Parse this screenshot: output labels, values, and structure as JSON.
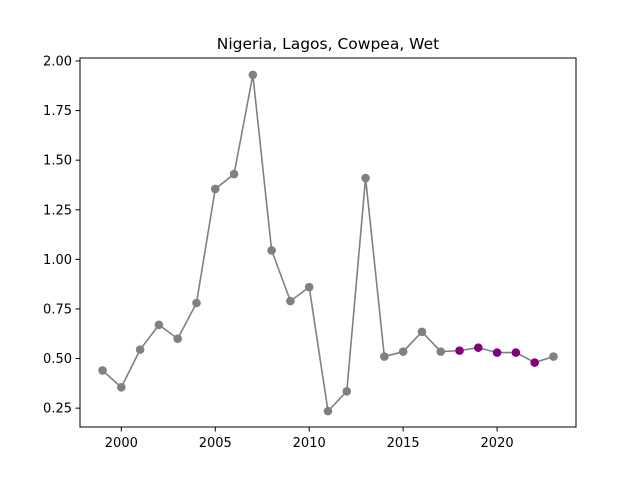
{
  "chart_data": {
    "type": "line",
    "title": "Nigeria, Lagos, Cowpea, Wet",
    "xlabel": "",
    "ylabel": "",
    "xlim": [
      1997.8,
      2024.2
    ],
    "ylim": [
      0.155,
      2.015
    ],
    "x_ticks": [
      2000,
      2005,
      2010,
      2015,
      2020
    ],
    "y_ticks": [
      0.25,
      0.5,
      0.75,
      1.0,
      1.25,
      1.5,
      1.75,
      2.0
    ],
    "grid": false,
    "legend": "none",
    "line_color": "#808080",
    "series": [
      {
        "x": [
          1999,
          2000,
          2001,
          2002,
          2003,
          2004,
          2005,
          2006,
          2007,
          2008,
          2009,
          2010,
          2011,
          2012,
          2013,
          2014,
          2015,
          2016,
          2017,
          2018,
          2019,
          2020,
          2021,
          2022,
          2023
        ],
        "values": [
          0.44,
          0.355,
          0.545,
          0.67,
          0.6,
          0.78,
          1.355,
          1.43,
          1.93,
          1.045,
          0.79,
          0.86,
          0.235,
          0.335,
          1.41,
          0.51,
          0.535,
          0.635,
          0.535,
          0.54,
          0.555,
          0.53,
          0.53,
          0.48,
          0.51
        ],
        "point_colors": [
          "#808080",
          "#808080",
          "#808080",
          "#808080",
          "#808080",
          "#808080",
          "#808080",
          "#808080",
          "#808080",
          "#808080",
          "#808080",
          "#808080",
          "#808080",
          "#808080",
          "#808080",
          "#808080",
          "#808080",
          "#808080",
          "#808080",
          "#800080",
          "#800080",
          "#800080",
          "#800080",
          "#800080",
          "#808080"
        ]
      }
    ]
  }
}
